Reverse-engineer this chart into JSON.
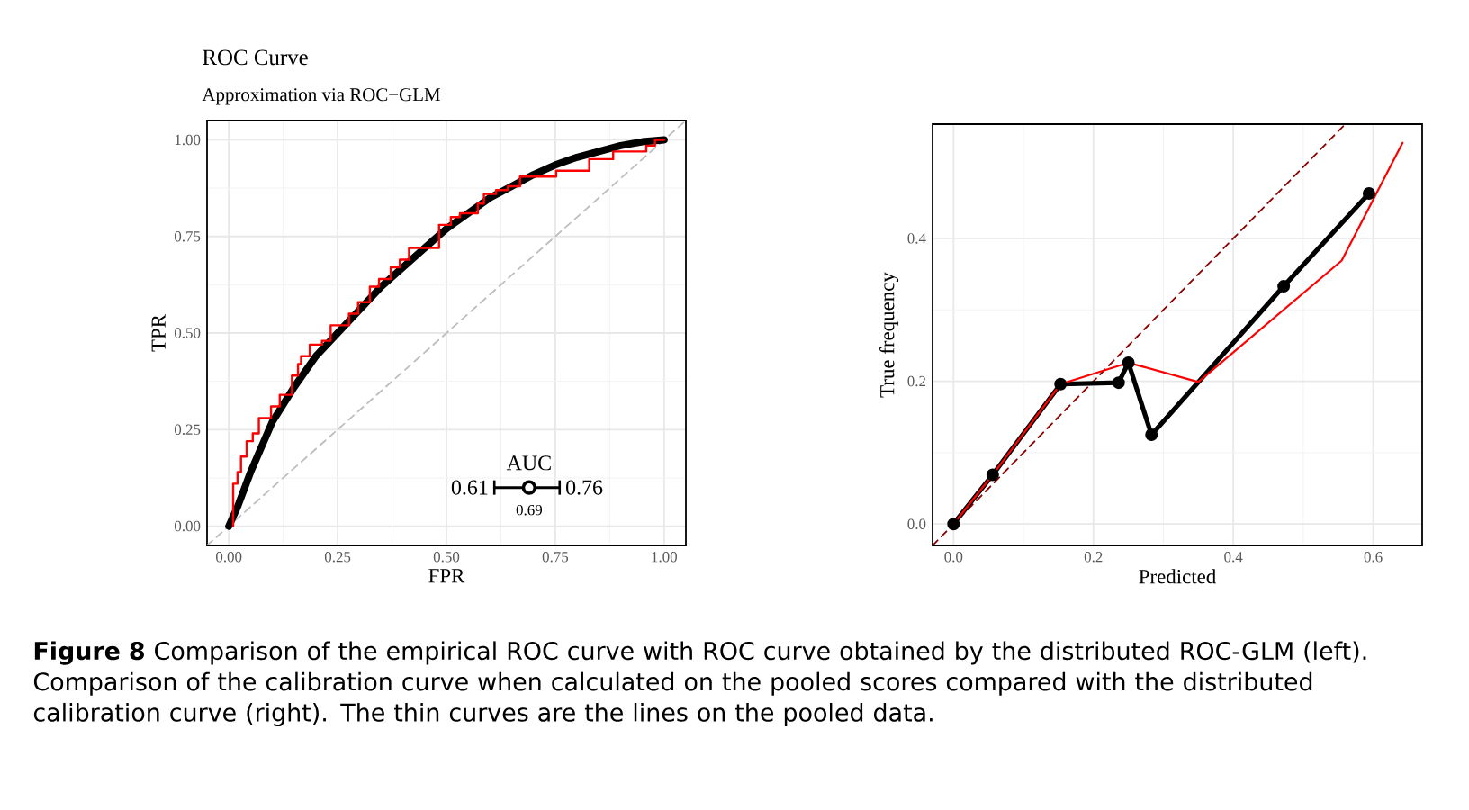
{
  "chart_data": [
    {
      "type": "line",
      "title": "ROC Curve",
      "subtitle": "Approximation via ROC−GLM",
      "xlabel": "FPR",
      "ylabel": "TPR",
      "xlim": [
        -0.05,
        1.05
      ],
      "ylim": [
        -0.05,
        1.05
      ],
      "xticks": [
        {
          "value": 0,
          "label": "0.00"
        },
        {
          "value": 0.25,
          "label": "0.25"
        },
        {
          "value": 0.5,
          "label": "0.50"
        },
        {
          "value": 0.75,
          "label": "0.75"
        },
        {
          "value": 1,
          "label": "1.00"
        }
      ],
      "yticks": [
        {
          "value": 0,
          "label": "0.00"
        },
        {
          "value": 0.25,
          "label": "0.25"
        },
        {
          "value": 0.5,
          "label": "0.50"
        },
        {
          "value": 0.75,
          "label": "0.75"
        },
        {
          "value": 1,
          "label": "1.00"
        }
      ],
      "grid": true,
      "series": [
        {
          "color": "#bdbdbd",
          "line_style": "dashed",
          "x": [
            -0.05,
            1.05
          ],
          "values": [
            -0.05,
            1.05
          ]
        },
        {
          "color": "#000000",
          "x": [
            0,
            0.02,
            0.05,
            0.1,
            0.15,
            0.2,
            0.25,
            0.3,
            0.35,
            0.4,
            0.45,
            0.5,
            0.55,
            0.6,
            0.65,
            0.7,
            0.75,
            0.8,
            0.85,
            0.9,
            0.95,
            1
          ],
          "values": [
            0,
            0.05,
            0.14,
            0.27,
            0.36,
            0.44,
            0.5,
            0.56,
            0.62,
            0.67,
            0.72,
            0.77,
            0.81,
            0.85,
            0.88,
            0.91,
            0.935,
            0.955,
            0.97,
            0.985,
            0.995,
            1
          ]
        },
        {
          "type": "step",
          "color": "#ff0000",
          "x": [
            0.01,
            0.01,
            0.02,
            0.028,
            0.041,
            0.055,
            0.069,
            0.097,
            0.117,
            0.145,
            0.159,
            0.166,
            0.186,
            0.214,
            0.234,
            0.276,
            0.297,
            0.324,
            0.345,
            0.372,
            0.393,
            0.414,
            0.483,
            0.51,
            0.531,
            0.572,
            0.586,
            0.614,
            0.641,
            0.669,
            0.752,
            0.828,
            0.883,
            0.959,
            0.979,
            1
          ],
          "values": [
            0,
            0.11,
            0.14,
            0.18,
            0.22,
            0.24,
            0.28,
            0.31,
            0.34,
            0.39,
            0.42,
            0.44,
            0.47,
            0.48,
            0.52,
            0.55,
            0.58,
            0.62,
            0.64,
            0.67,
            0.69,
            0.72,
            0.78,
            0.8,
            0.81,
            0.835,
            0.86,
            0.87,
            0.88,
            0.905,
            0.92,
            0.95,
            0.97,
            0.985,
            1,
            1
          ]
        },
        {
          "type": "scatter",
          "color": "#000000",
          "marker": "circle",
          "x": [
            0.69
          ],
          "values": [
            0.1
          ],
          "xerrors": [
            [
              0.61,
              0.76
            ]
          ]
        }
      ],
      "annotations": [
        {
          "text": "AUC",
          "x": 0.69,
          "y": 0.13
        },
        {
          "text": "0.61",
          "x": 0.61,
          "y": 0.1
        },
        {
          "text": "0.76",
          "x": 0.76,
          "y": 0.1
        },
        {
          "text": "0.69",
          "x": 0.69,
          "y": 0.07
        },
        "**Figure 8** Comparison of the empirical ROC curve with ROC curve obtained by the distributed ROC-GLM (left). Comparison of the calibration curve when calculated on the pooled scores compared with the distributed calibration curve (right). The thin curves are the lines on the pooled data."
      ]
    },
    {
      "type": "line",
      "xlabel": "Predicted",
      "ylabel": "True frequency",
      "xlim": [
        -0.03,
        0.67
      ],
      "ylim": [
        -0.03,
        0.56
      ],
      "xticks": [
        {
          "value": 0,
          "label": "0.0"
        },
        {
          "value": 0.2,
          "label": "0.2"
        },
        {
          "value": 0.4,
          "label": "0.4"
        },
        {
          "value": 0.6,
          "label": "0.6"
        }
      ],
      "yticks": [
        {
          "value": 0,
          "label": "0.0"
        },
        {
          "value": 0.2,
          "label": "0.2"
        },
        {
          "value": 0.4,
          "label": "0.4"
        }
      ],
      "grid": true,
      "series": [
        {
          "color": "#8b0000",
          "line_style": "dashed",
          "x": [
            -0.03,
            0.56
          ],
          "values": [
            -0.03,
            0.56
          ]
        },
        {
          "color": "#000000",
          "marker": "circle",
          "x": [
            0,
            0.056,
            0.153,
            0.236,
            0.25,
            0.283,
            0.472,
            0.594
          ],
          "values": [
            0,
            0.069,
            0.196,
            0.198,
            0.226,
            0.125,
            0.333,
            0.463
          ]
        },
        {
          "color": "#ff0000",
          "x": [
            0,
            0.056,
            0.153,
            0.25,
            0.35,
            0.555,
            0.642
          ],
          "values": [
            0,
            0.069,
            0.196,
            0.226,
            0.199,
            0.369,
            0.534
          ]
        }
      ]
    }
  ]
}
